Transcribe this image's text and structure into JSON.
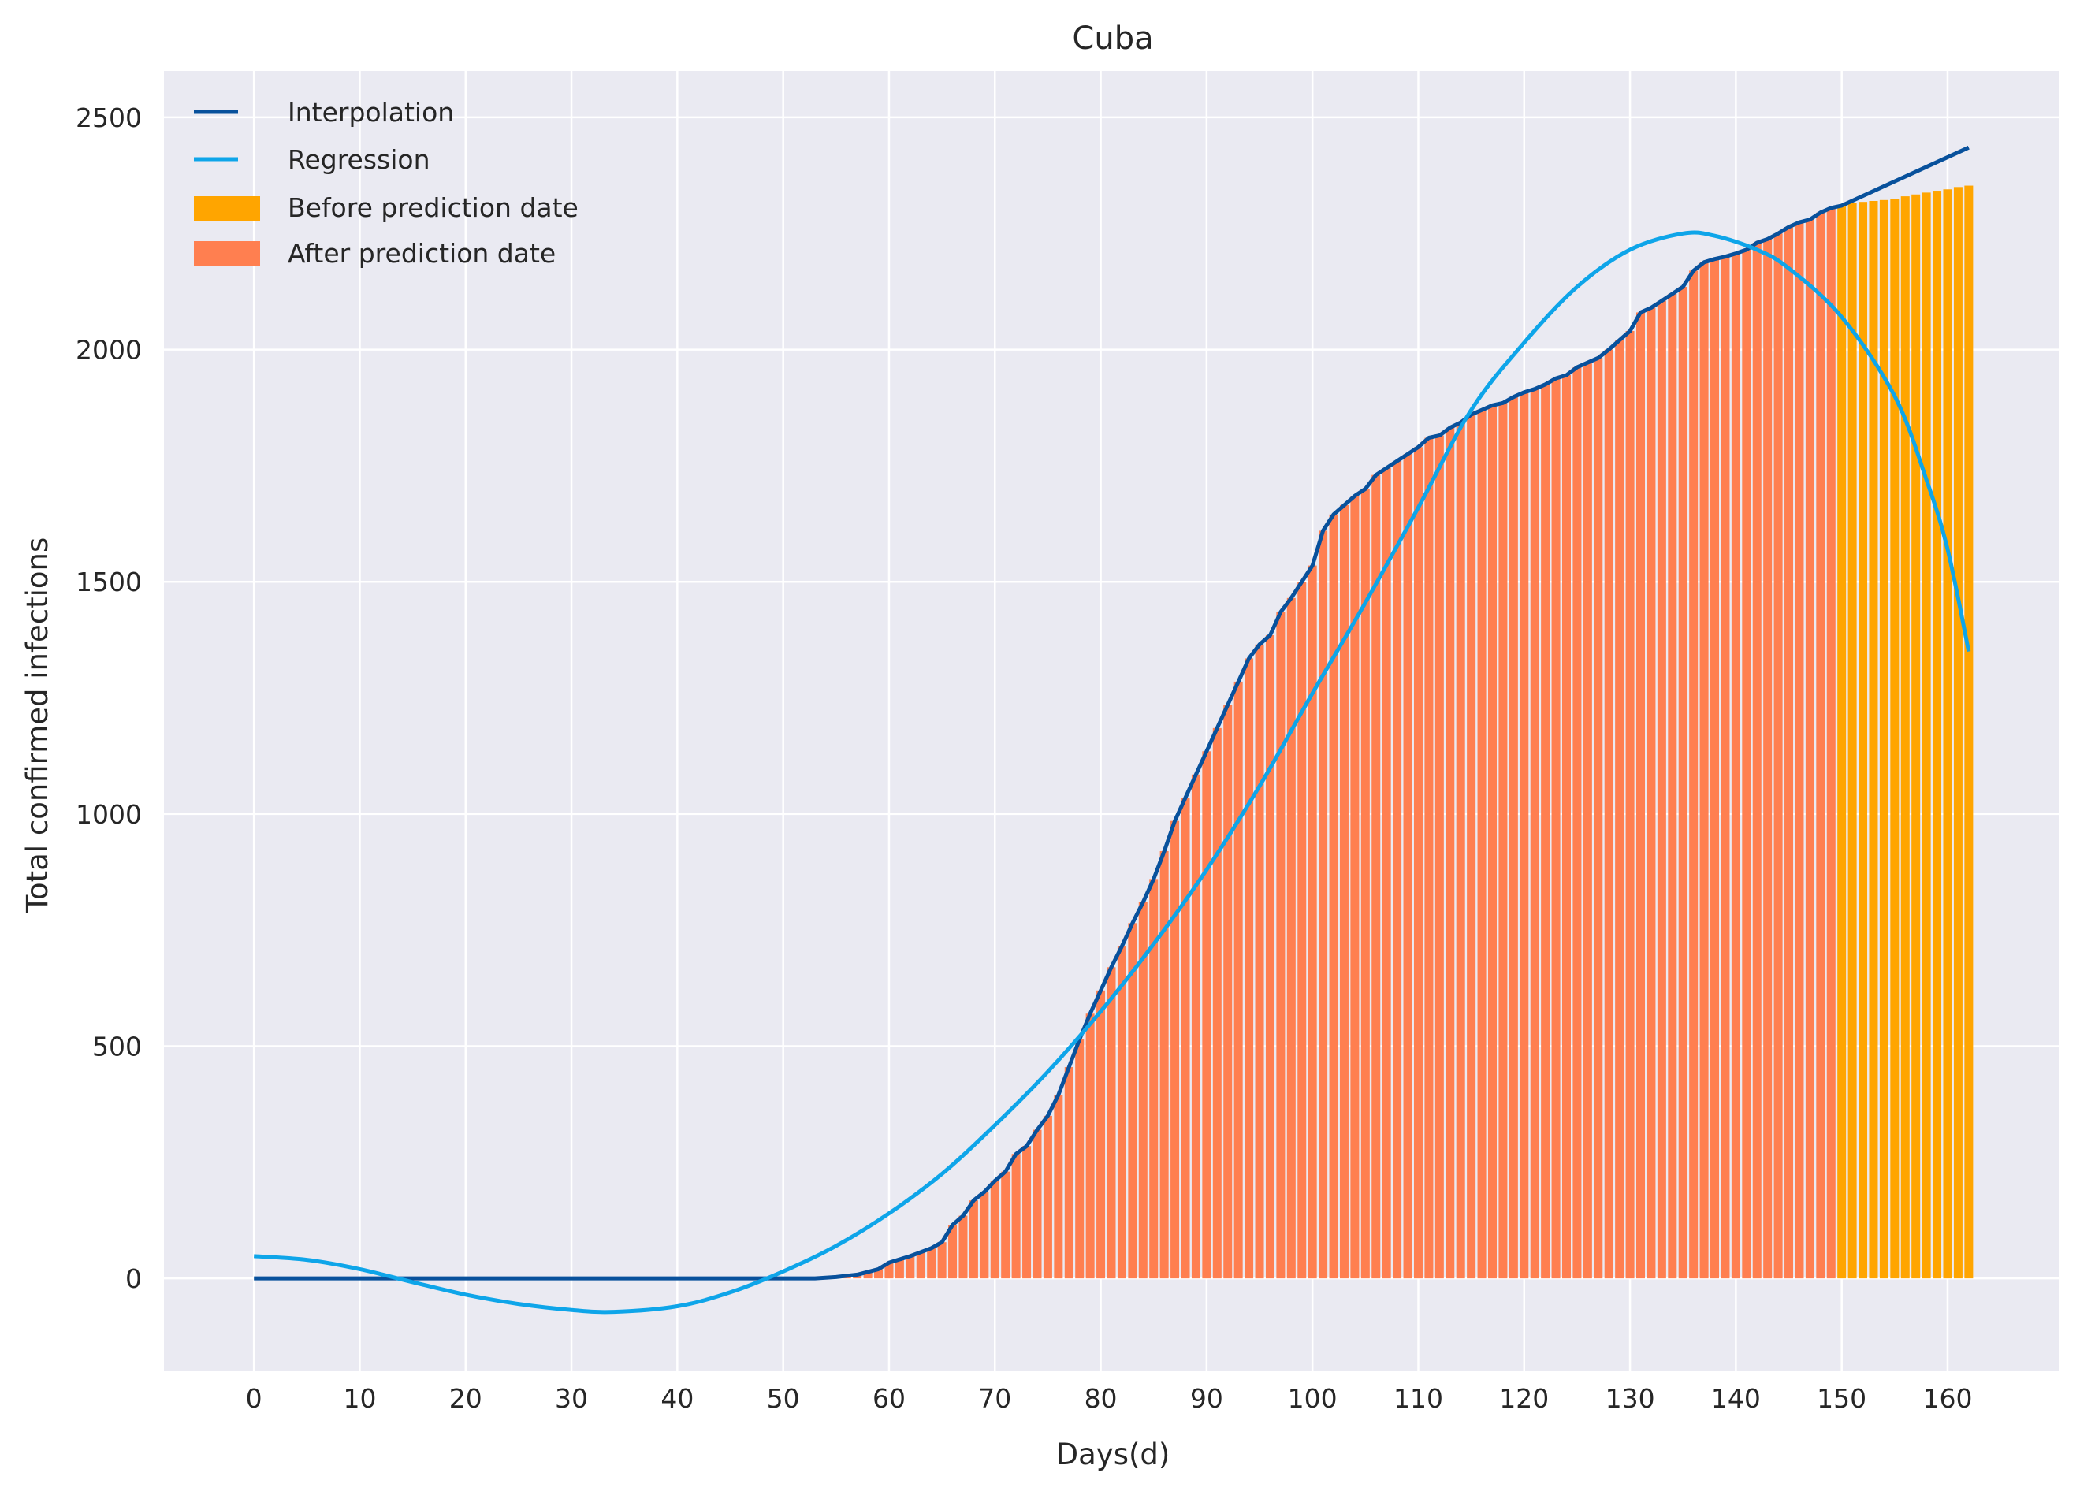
{
  "chart_data": {
    "type": "bar",
    "title": "Cuba",
    "xlabel": "Days(d)",
    "ylabel": "Total confirmed infections",
    "xlim": [
      -8.5,
      170.5
    ],
    "ylim": [
      -200,
      2600
    ],
    "x_ticks": [
      0,
      10,
      20,
      30,
      40,
      50,
      60,
      70,
      80,
      90,
      100,
      110,
      120,
      130,
      140,
      150,
      160
    ],
    "y_ticks": [
      0,
      500,
      1000,
      1500,
      2000,
      2500
    ],
    "grid": true,
    "legend_position": "top-left",
    "colors": {
      "background": "#eaeaf2",
      "grid": "#ffffff",
      "interpolation": "#08519c",
      "regression": "#0ea5e9",
      "before_prediction": "#ffa500",
      "after_prediction": "#ff7f50"
    },
    "legend": [
      {
        "label": "Interpolation",
        "kind": "line",
        "color": "#08519c"
      },
      {
        "label": "Regression",
        "kind": "line",
        "color": "#0ea5e9"
      },
      {
        "label": "Before prediction date",
        "kind": "patch",
        "color": "#ffa500"
      },
      {
        "label": "After prediction date",
        "kind": "patch",
        "color": "#ff7f50"
      }
    ],
    "prediction_day": 150,
    "interpolation_end": {
      "x": 162,
      "y": 2435
    },
    "bars_cumulative": [
      [
        0,
        0
      ],
      [
        53,
        0
      ],
      [
        55,
        3
      ],
      [
        57,
        8
      ],
      [
        59,
        20
      ],
      [
        60,
        34
      ],
      [
        62,
        48
      ],
      [
        64,
        65
      ],
      [
        65,
        78
      ],
      [
        66,
        115
      ],
      [
        67,
        135
      ],
      [
        68,
        168
      ],
      [
        69,
        186
      ],
      [
        70,
        210
      ],
      [
        71,
        230
      ],
      [
        72,
        268
      ],
      [
        73,
        285
      ],
      [
        74,
        320
      ],
      [
        75,
        350
      ],
      [
        76,
        395
      ],
      [
        77,
        455
      ],
      [
        78,
        515
      ],
      [
        79,
        570
      ],
      [
        80,
        620
      ],
      [
        81,
        670
      ],
      [
        82,
        715
      ],
      [
        83,
        765
      ],
      [
        84,
        810
      ],
      [
        85,
        860
      ],
      [
        86,
        920
      ],
      [
        87,
        985
      ],
      [
        88,
        1035
      ],
      [
        89,
        1085
      ],
      [
        90,
        1135
      ],
      [
        91,
        1185
      ],
      [
        92,
        1235
      ],
      [
        93,
        1285
      ],
      [
        94,
        1335
      ],
      [
        95,
        1365
      ],
      [
        96,
        1385
      ],
      [
        97,
        1435
      ],
      [
        98,
        1465
      ],
      [
        99,
        1500
      ],
      [
        100,
        1535
      ],
      [
        101,
        1610
      ],
      [
        102,
        1645
      ],
      [
        103,
        1665
      ],
      [
        104,
        1685
      ],
      [
        105,
        1700
      ],
      [
        106,
        1730
      ],
      [
        107,
        1745
      ],
      [
        108,
        1760
      ],
      [
        109,
        1775
      ],
      [
        110,
        1790
      ],
      [
        111,
        1810
      ],
      [
        112,
        1815
      ],
      [
        113,
        1832
      ],
      [
        114,
        1843
      ],
      [
        115,
        1860
      ],
      [
        116,
        1870
      ],
      [
        117,
        1880
      ],
      [
        118,
        1885
      ],
      [
        119,
        1898
      ],
      [
        120,
        1908
      ],
      [
        121,
        1915
      ],
      [
        122,
        1925
      ],
      [
        123,
        1938
      ],
      [
        124,
        1945
      ],
      [
        125,
        1962
      ],
      [
        126,
        1972
      ],
      [
        127,
        1982
      ],
      [
        128,
        2000
      ],
      [
        129,
        2020
      ],
      [
        130,
        2040
      ],
      [
        131,
        2080
      ],
      [
        132,
        2090
      ],
      [
        133,
        2105
      ],
      [
        134,
        2120
      ],
      [
        135,
        2135
      ],
      [
        136,
        2170
      ],
      [
        137,
        2188
      ],
      [
        138,
        2195
      ],
      [
        139,
        2200
      ],
      [
        140,
        2207
      ],
      [
        141,
        2215
      ],
      [
        142,
        2230
      ],
      [
        143,
        2238
      ],
      [
        144,
        2250
      ],
      [
        145,
        2264
      ],
      [
        146,
        2274
      ],
      [
        147,
        2280
      ],
      [
        148,
        2295
      ],
      [
        149,
        2305
      ],
      [
        150,
        2310
      ],
      [
        151,
        2315
      ],
      [
        152,
        2318
      ],
      [
        153,
        2320
      ],
      [
        154,
        2322
      ],
      [
        155,
        2325
      ],
      [
        156,
        2330
      ],
      [
        157,
        2334
      ],
      [
        158,
        2338
      ],
      [
        159,
        2342
      ],
      [
        160,
        2345
      ],
      [
        161,
        2350
      ],
      [
        162,
        2353
      ]
    ],
    "regression_points": [
      [
        0,
        48
      ],
      [
        5,
        40
      ],
      [
        10,
        20
      ],
      [
        15,
        -8
      ],
      [
        20,
        -35
      ],
      [
        25,
        -55
      ],
      [
        30,
        -68
      ],
      [
        34,
        -72
      ],
      [
        40,
        -60
      ],
      [
        45,
        -30
      ],
      [
        50,
        15
      ],
      [
        55,
        70
      ],
      [
        60,
        140
      ],
      [
        65,
        225
      ],
      [
        70,
        330
      ],
      [
        75,
        445
      ],
      [
        80,
        575
      ],
      [
        85,
        720
      ],
      [
        90,
        880
      ],
      [
        95,
        1060
      ],
      [
        100,
        1260
      ],
      [
        105,
        1455
      ],
      [
        110,
        1660
      ],
      [
        115,
        1870
      ],
      [
        120,
        2015
      ],
      [
        125,
        2135
      ],
      [
        130,
        2215
      ],
      [
        135,
        2250
      ],
      [
        138,
        2245
      ],
      [
        142,
        2215
      ],
      [
        145,
        2175
      ],
      [
        150,
        2070
      ],
      [
        155,
        1900
      ],
      [
        158,
        1720
      ],
      [
        160,
        1570
      ],
      [
        162,
        1350
      ]
    ]
  }
}
